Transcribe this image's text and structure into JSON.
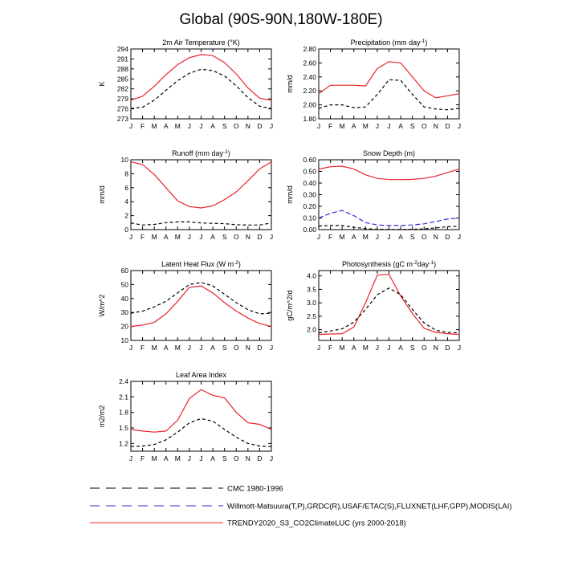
{
  "figure_title": "Global (90S-90N,180W-180E)",
  "months": [
    "J",
    "F",
    "M",
    "A",
    "M",
    "J",
    "J",
    "A",
    "S",
    "O",
    "N",
    "D",
    "J"
  ],
  "colors": {
    "cmc": "#000000",
    "obs": "#2b2bd6",
    "trendy": "#e8242a"
  },
  "legend": [
    {
      "key": "cmc",
      "label": "CMC 1980-1996",
      "dash": true
    },
    {
      "key": "obs",
      "label": "Willmott-Matsuura(T,P),GRDC(R),USAF/ETAC(S),FLUXNET(LHF,GPP),MODIS(LAI)",
      "dash": true
    },
    {
      "key": "trendy",
      "label": "TRENDY2020_S3_CO2ClimateLUC (yrs 2000-2018)",
      "dash": false
    }
  ],
  "chart_data": [
    {
      "type": "line",
      "title": "2m Air Temperature (°K)",
      "ylabel": "K",
      "ylim": [
        273,
        294
      ],
      "yticks": [
        "273",
        "276",
        "279",
        "282",
        "285",
        "288",
        "291",
        "294"
      ],
      "yticks_values": [
        273,
        276,
        279,
        282,
        285,
        288,
        291,
        294
      ],
      "series": [
        {
          "key": "trendy",
          "values": [
            278.6,
            279.8,
            282.8,
            286.3,
            289.3,
            291.4,
            292.3,
            292.0,
            289.9,
            286.5,
            282.3,
            279.2,
            278.6
          ]
        },
        {
          "key": "cmc",
          "values": [
            276.1,
            276.5,
            278.6,
            281.6,
            284.5,
            286.7,
            287.9,
            287.5,
            285.9,
            282.9,
            279.4,
            276.8,
            276.1
          ]
        }
      ]
    },
    {
      "type": "line",
      "title": "Precipitation (mm day-1)",
      "ylabel": "mm/d",
      "ylim": [
        1.8,
        2.8
      ],
      "yticks": [
        "1.80",
        "2.00",
        "2.20",
        "2.40",
        "2.60",
        "2.80"
      ],
      "yticks_values": [
        1.8,
        2.0,
        2.2,
        2.4,
        2.6,
        2.8
      ],
      "series": [
        {
          "key": "trendy",
          "values": [
            2.16,
            2.28,
            2.28,
            2.28,
            2.27,
            2.52,
            2.62,
            2.6,
            2.4,
            2.2,
            2.1,
            2.13,
            2.16
          ]
        },
        {
          "key": "cmc",
          "values": [
            1.95,
            2.0,
            2.0,
            1.96,
            1.97,
            2.15,
            2.36,
            2.35,
            2.15,
            1.97,
            1.94,
            1.93,
            1.95
          ]
        }
      ]
    },
    {
      "type": "line",
      "title": "Runoff (mm day-1)",
      "ylabel": "mm/d",
      "ylim": [
        0,
        10
      ],
      "yticks": [
        "0",
        "2",
        "4",
        "6",
        "8",
        "10"
      ],
      "yticks_values": [
        0,
        2,
        4,
        6,
        8,
        10
      ],
      "series": [
        {
          "key": "trendy",
          "values": [
            9.7,
            9.3,
            7.9,
            6.0,
            4.1,
            3.3,
            3.1,
            3.4,
            4.3,
            5.4,
            7.0,
            8.7,
            9.7
          ]
        },
        {
          "key": "cmc",
          "values": [
            0.95,
            0.65,
            0.75,
            1.0,
            1.1,
            1.1,
            0.95,
            0.9,
            0.85,
            0.7,
            0.65,
            0.65,
            0.95
          ]
        }
      ]
    },
    {
      "type": "line",
      "title": "Snow Depth (m)",
      "ylabel": "mm/d",
      "ylim": [
        0,
        0.6
      ],
      "yticks": [
        "0.00",
        "0.10",
        "0.20",
        "0.30",
        "0.40",
        "0.50",
        "0.60"
      ],
      "yticks_values": [
        0,
        0.1,
        0.2,
        0.3,
        0.4,
        0.5,
        0.6
      ],
      "series": [
        {
          "key": "trendy",
          "values": [
            0.52,
            0.54,
            0.545,
            0.52,
            0.47,
            0.44,
            0.43,
            0.43,
            0.432,
            0.44,
            0.46,
            0.49,
            0.52
          ]
        },
        {
          "key": "obs",
          "values": [
            0.1,
            0.14,
            0.165,
            0.12,
            0.06,
            0.04,
            0.035,
            0.035,
            0.04,
            0.05,
            0.07,
            0.09,
            0.1
          ]
        },
        {
          "key": "cmc",
          "values": [
            0.03,
            0.035,
            0.035,
            0.02,
            0.008,
            0.003,
            0.002,
            0.002,
            0.003,
            0.006,
            0.015,
            0.025,
            0.03
          ]
        }
      ]
    },
    {
      "type": "line",
      "title": "Latent Heat Flux (W m-2)",
      "ylabel": "W/m^2",
      "ylim": [
        10,
        60
      ],
      "yticks": [
        "10",
        "20",
        "30",
        "40",
        "50",
        "60"
      ],
      "yticks_values": [
        10,
        20,
        30,
        40,
        50,
        60
      ],
      "series": [
        {
          "key": "trendy",
          "values": [
            20,
            21,
            23,
            29,
            38,
            48,
            49,
            44,
            37,
            31,
            26,
            22,
            20
          ]
        },
        {
          "key": "cmc",
          "values": [
            29.5,
            31,
            34,
            38,
            44,
            50,
            51.5,
            49,
            43,
            37,
            32,
            29,
            29.5
          ]
        }
      ]
    },
    {
      "type": "line",
      "title": "Photosynthesis (gC m-2day-1)",
      "ylabel": "gC/m^2/d",
      "ylim": [
        1.6,
        4.2
      ],
      "yticks": [
        "2.0",
        "2.5",
        "3.0",
        "3.5",
        "4.0"
      ],
      "yticks_values": [
        2.0,
        2.5,
        3.0,
        3.5,
        4.0
      ],
      "series": [
        {
          "key": "trendy",
          "values": [
            1.82,
            1.84,
            1.85,
            2.1,
            3.0,
            4.03,
            4.06,
            3.25,
            2.6,
            2.05,
            1.9,
            1.85,
            1.82
          ]
        },
        {
          "key": "cmc",
          "values": [
            1.88,
            1.95,
            2.03,
            2.28,
            2.75,
            3.3,
            3.55,
            3.3,
            2.75,
            2.25,
            1.98,
            1.9,
            1.88
          ]
        }
      ]
    },
    {
      "type": "line",
      "title": "Leaf Area Index",
      "ylabel": "m2/m2",
      "ylim": [
        1.05,
        2.4
      ],
      "yticks": [
        "1.2",
        "1.5",
        "1.8",
        "2.1",
        "2.4"
      ],
      "yticks_values": [
        1.2,
        1.5,
        1.8,
        2.1,
        2.4
      ],
      "series": [
        {
          "key": "trendy",
          "values": [
            1.47,
            1.44,
            1.42,
            1.44,
            1.65,
            2.07,
            2.24,
            2.13,
            2.08,
            1.8,
            1.6,
            1.57,
            1.47
          ]
        },
        {
          "key": "cmc",
          "values": [
            1.14,
            1.15,
            1.18,
            1.27,
            1.42,
            1.6,
            1.68,
            1.63,
            1.47,
            1.32,
            1.2,
            1.15,
            1.14
          ]
        }
      ]
    }
  ]
}
